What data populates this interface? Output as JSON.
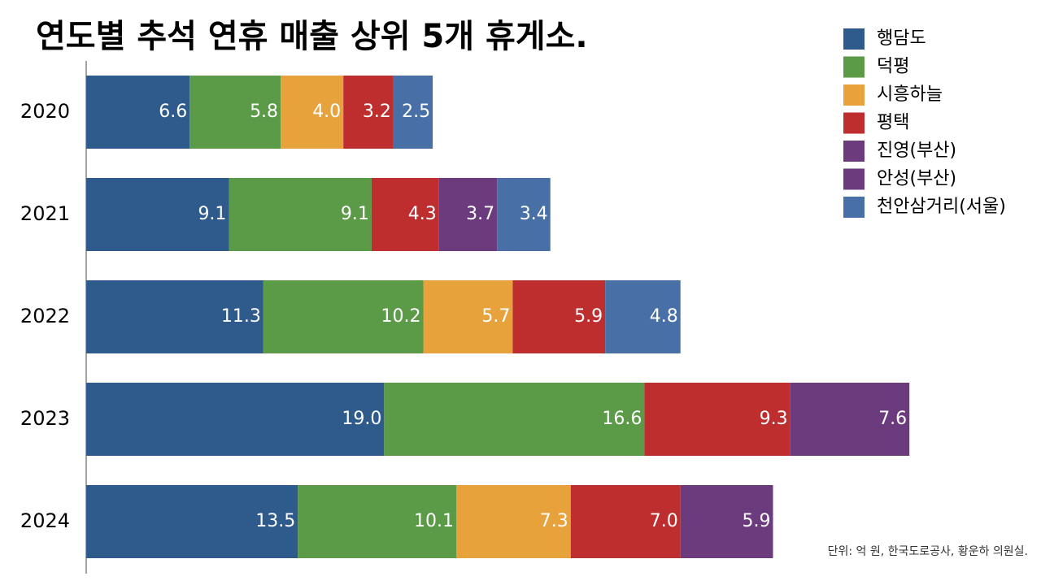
{
  "chart_data": {
    "type": "stacked-barh",
    "title": "연도별 추석 연휴 매출 상위 5개 휴게소.",
    "note": "단위: 억 원, 한국도로공사, 황운하 의원실.",
    "categories": [
      "2020",
      "2021",
      "2022",
      "2023",
      "2024"
    ],
    "series": [
      {
        "name": "행담도",
        "color": "#2f5a8c",
        "values": [
          6.6,
          9.1,
          11.3,
          19.0,
          13.5
        ],
        "value_labels": [
          "6.6",
          "9.1",
          "11.3",
          "19.0",
          "13.5"
        ]
      },
      {
        "name": "덕평",
        "color": "#5b9a47",
        "values": [
          5.8,
          9.1,
          10.2,
          16.6,
          10.1
        ],
        "value_labels": [
          "5.8",
          "9.1",
          "10.2",
          "16.6",
          "10.1"
        ]
      },
      {
        "name": "시흥하늘",
        "color": "#e8a23c",
        "values": [
          4.0,
          null,
          5.7,
          null,
          7.3
        ],
        "value_labels": [
          "4.0",
          null,
          "5.7",
          null,
          "7.3"
        ]
      },
      {
        "name": "평택",
        "color": "#bf2e2f",
        "values": [
          3.2,
          4.3,
          5.9,
          9.3,
          7.0
        ],
        "value_labels": [
          "3.2",
          "4.3",
          "5.9",
          "9.3",
          "7.0"
        ]
      },
      {
        "name": "진영(부산)",
        "color": "#6c3b7d",
        "values": [
          null,
          null,
          null,
          7.6,
          5.9
        ],
        "value_labels": [
          null,
          null,
          null,
          "7.6",
          "5.9"
        ]
      },
      {
        "name": "안성(부산)",
        "color": "#6c3b7d",
        "values": [
          null,
          3.7,
          null,
          null,
          null
        ],
        "value_labels": [
          null,
          "3.7",
          null,
          null,
          null
        ]
      },
      {
        "name": "천안삼거리(서울)",
        "color": "#4870a6",
        "values": [
          2.5,
          3.4,
          4.8,
          null,
          null
        ],
        "value_labels": [
          "2.5",
          "3.4",
          "4.8",
          null,
          null
        ]
      }
    ]
  }
}
